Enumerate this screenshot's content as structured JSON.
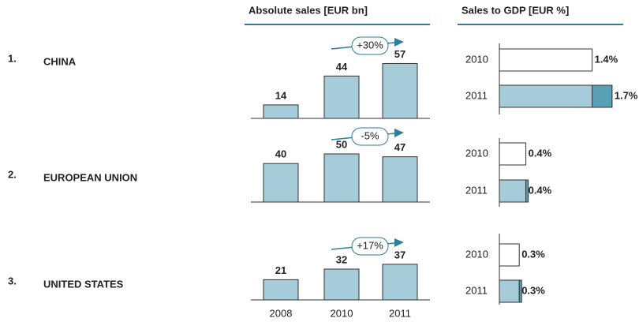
{
  "headers": {
    "sales": "Absolute sales [EUR bn]",
    "gdp": "Sales to GDP [EUR %]"
  },
  "years": [
    "2008",
    "2010",
    "2011"
  ],
  "gdp_years": [
    "2010",
    "2011"
  ],
  "regions": [
    {
      "rank": "1.",
      "name": "CHINA",
      "sales": [
        14,
        44,
        57
      ],
      "growth": "+30%",
      "gdp": [
        1.4,
        1.7
      ],
      "gdp_labels": [
        "1.4%",
        "1.7%"
      ]
    },
    {
      "rank": "2.",
      "name": "EUROPEAN UNION",
      "sales": [
        40,
        50,
        47
      ],
      "growth": "-5%",
      "gdp": [
        0.4,
        0.4
      ],
      "gdp_labels": [
        "0.4%",
        "0.4%"
      ]
    },
    {
      "rank": "3.",
      "name": "UNITED STATES",
      "sales": [
        21,
        32,
        37
      ],
      "growth": "+17%",
      "gdp": [
        0.3,
        0.3
      ],
      "gdp_labels": [
        "0.3%",
        "0.3%"
      ]
    }
  ]
}
